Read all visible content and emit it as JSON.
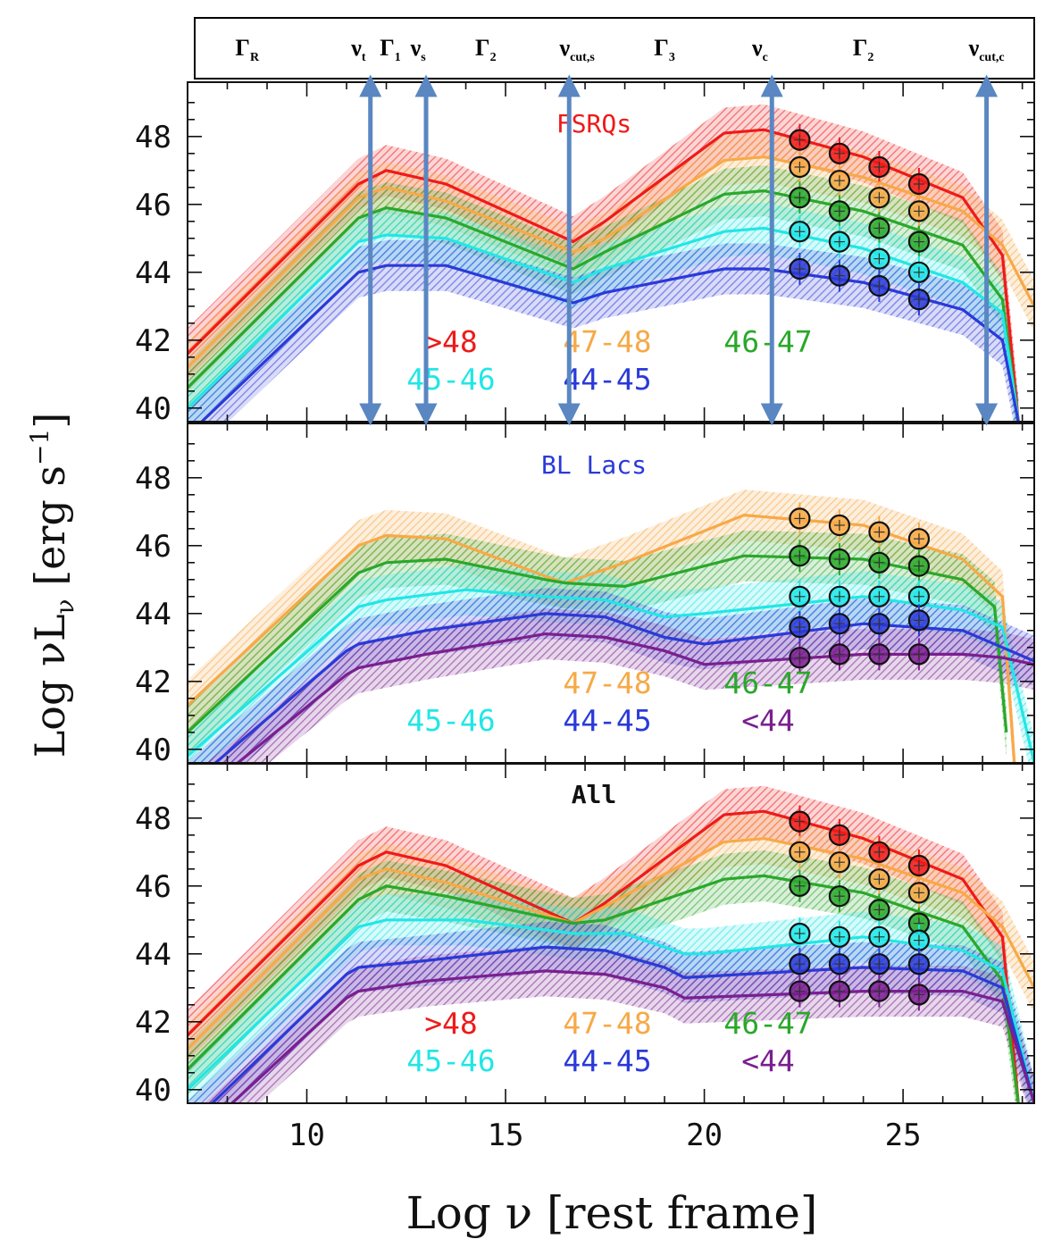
{
  "header": {
    "params": [
      {
        "sym": "Γ",
        "sub": "R",
        "x": 8.5
      },
      {
        "sym": "ν",
        "sub": "t",
        "x": 11.3
      },
      {
        "sym": "Γ",
        "sub": "1",
        "x": 12.1
      },
      {
        "sym": "ν",
        "sub": "s",
        "x": 12.8
      },
      {
        "sym": "Γ",
        "sub": "2",
        "x": 14.5
      },
      {
        "sym": "ν",
        "sub": "cut,s",
        "x": 16.8
      },
      {
        "sym": "Γ",
        "sub": "3",
        "x": 19.0
      },
      {
        "sym": "ν",
        "sub": "c",
        "x": 21.4
      },
      {
        "sym": "Γ",
        "sub": "2",
        "x": 24.0
      },
      {
        "sym": "ν",
        "sub": "cut,c",
        "x": 27.1
      }
    ],
    "arrows_x": [
      11.6,
      13.0,
      16.6,
      21.7,
      27.1
    ]
  },
  "axes": {
    "xlabel": "Log ν [rest frame]",
    "ylabel": "Log νL",
    "ylabel_sub": "ν",
    "ylabel_units": "[erg s",
    "ylabel_exp": "−1",
    "ylabel_close": "]",
    "xlim": [
      7,
      28.3
    ],
    "ylim": [
      39.6,
      49.6
    ],
    "xticks": [
      10,
      15,
      20,
      25
    ],
    "yticks": [
      40,
      42,
      44,
      46,
      48
    ]
  },
  "colors": {
    ">48": "#ee1a1a",
    "47-48": "#f7a947",
    "46-47": "#2aa82a",
    "45-46": "#22e6e6",
    "44-45": "#2a3ad8",
    "<44": "#7a1f8f"
  },
  "chart_data": [
    {
      "type": "line",
      "title": "FSRQs",
      "title_color": "#ee1a1a",
      "legend": [
        {
          "label": ">48",
          "key": ">48"
        },
        {
          "label": "47-48",
          "key": "47-48"
        },
        {
          "label": "46-47",
          "key": "46-47"
        },
        {
          "label": "45-46",
          "key": "45-46"
        },
        {
          "label": "44-45",
          "key": "44-45"
        }
      ],
      "series": [
        {
          "key": ">48",
          "x": [
            7,
            11.3,
            12.0,
            13.5,
            16.7,
            17.5,
            20.5,
            21.5,
            24.0,
            26.5,
            27.5,
            27.9
          ],
          "y": [
            41.6,
            46.6,
            47.0,
            46.6,
            44.9,
            45.5,
            48.1,
            48.2,
            47.4,
            46.2,
            44.5,
            39.6
          ],
          "points": [
            [
              22.4,
              47.9
            ],
            [
              23.4,
              47.5
            ],
            [
              24.4,
              47.1
            ],
            [
              25.4,
              46.6
            ]
          ]
        },
        {
          "key": "47-48",
          "x": [
            7,
            11.3,
            12.0,
            13.5,
            16.7,
            17.5,
            20.5,
            21.5,
            24.0,
            26.5,
            27.5,
            28.3
          ],
          "y": [
            41.2,
            46.2,
            46.5,
            46.1,
            44.6,
            45.0,
            47.3,
            47.4,
            46.8,
            45.8,
            44.8,
            43.0
          ],
          "points": [
            [
              22.4,
              47.1
            ],
            [
              23.4,
              46.7
            ],
            [
              24.4,
              46.2
            ],
            [
              25.4,
              45.8
            ]
          ]
        },
        {
          "key": "46-47",
          "x": [
            7,
            11.3,
            12.0,
            13.5,
            16.7,
            17.5,
            20.5,
            21.5,
            24.0,
            26.5,
            27.5,
            27.9
          ],
          "y": [
            40.6,
            45.6,
            45.9,
            45.6,
            44.1,
            44.6,
            46.3,
            46.4,
            45.8,
            44.8,
            43.2,
            39.6
          ],
          "points": [
            [
              22.4,
              46.2
            ],
            [
              23.4,
              45.8
            ],
            [
              24.4,
              45.3
            ],
            [
              25.4,
              44.9
            ]
          ]
        },
        {
          "key": "45-46",
          "x": [
            7,
            11.3,
            12.0,
            13.5,
            16.7,
            17.5,
            20.5,
            21.5,
            24.0,
            26.5,
            27.5,
            27.9
          ],
          "y": [
            40.0,
            44.9,
            45.1,
            45.0,
            43.7,
            44.1,
            45.2,
            45.3,
            44.7,
            43.7,
            42.8,
            39.6
          ],
          "points": [
            [
              22.4,
              45.2
            ],
            [
              23.4,
              44.9
            ],
            [
              24.4,
              44.4
            ],
            [
              25.4,
              44.0
            ]
          ]
        },
        {
          "key": "44-45",
          "x": [
            7,
            11.3,
            12.0,
            13.5,
            16.7,
            17.5,
            20.5,
            21.5,
            24.0,
            26.5,
            27.5,
            27.9
          ],
          "y": [
            39.2,
            44.0,
            44.2,
            44.2,
            43.1,
            43.4,
            44.1,
            44.1,
            43.7,
            42.9,
            42.0,
            39.6
          ],
          "points": [
            [
              22.4,
              44.1
            ],
            [
              23.4,
              43.9
            ],
            [
              24.4,
              43.6
            ],
            [
              25.4,
              43.2
            ]
          ]
        }
      ]
    },
    {
      "type": "line",
      "title": "BL Lacs",
      "title_color": "#2a3ad8",
      "legend": [
        {
          "label": "47-48",
          "key": "47-48"
        },
        {
          "label": "46-47",
          "key": "46-47"
        },
        {
          "label": "45-46",
          "key": "45-46"
        },
        {
          "label": "44-45",
          "key": "44-45"
        },
        {
          "label": "<44",
          "key": "<44"
        }
      ],
      "series": [
        {
          "key": "47-48",
          "x": [
            7,
            11.3,
            12.0,
            13.5,
            16.0,
            16.5,
            18.0,
            21.0,
            24.0,
            26.5,
            27.5,
            27.8
          ],
          "y": [
            41.3,
            46.0,
            46.3,
            46.2,
            45.1,
            44.9,
            45.5,
            46.9,
            46.6,
            45.6,
            44.5,
            39.6
          ],
          "points": [
            [
              22.4,
              46.8
            ],
            [
              23.4,
              46.6
            ],
            [
              24.4,
              46.4
            ],
            [
              25.4,
              46.2
            ]
          ]
        },
        {
          "key": "46-47",
          "x": [
            7,
            11.3,
            12.0,
            13.5,
            16.0,
            16.5,
            18.0,
            21.0,
            24.0,
            26.5,
            27.3,
            27.6
          ],
          "y": [
            40.5,
            45.2,
            45.5,
            45.6,
            45.0,
            44.9,
            44.8,
            45.7,
            45.6,
            45.0,
            44.2,
            40.5
          ],
          "points": [
            [
              22.4,
              45.7
            ],
            [
              23.4,
              45.6
            ],
            [
              24.4,
              45.5
            ],
            [
              25.4,
              45.4
            ]
          ]
        },
        {
          "key": "45-46",
          "x": [
            7,
            11.3,
            12.0,
            14.0,
            16.0,
            17.5,
            19.0,
            20.0,
            24.0,
            26.5,
            27.5,
            28.3
          ],
          "y": [
            39.8,
            44.2,
            44.4,
            44.7,
            44.5,
            44.4,
            43.9,
            44.0,
            44.5,
            44.1,
            43.6,
            39.6
          ],
          "points": [
            [
              22.4,
              44.5
            ],
            [
              23.4,
              44.5
            ],
            [
              24.4,
              44.5
            ],
            [
              25.4,
              44.5
            ]
          ]
        },
        {
          "key": "44-45",
          "x": [
            7,
            11.0,
            11.3,
            13.0,
            16.0,
            17.5,
            19.0,
            20.0,
            24.0,
            26.5,
            27.5,
            28.3
          ],
          "y": [
            38.9,
            42.9,
            43.1,
            43.5,
            44.0,
            43.9,
            43.3,
            43.1,
            43.7,
            43.5,
            43.0,
            42.6
          ],
          "points": [
            [
              22.4,
              43.6
            ],
            [
              23.4,
              43.7
            ],
            [
              24.4,
              43.7
            ],
            [
              25.4,
              43.8
            ]
          ]
        },
        {
          "key": "<44",
          "x": [
            7,
            11.0,
            11.3,
            13.0,
            16.0,
            17.5,
            19.0,
            20.0,
            24.0,
            26.5,
            27.5,
            28.3
          ],
          "y": [
            38.4,
            42.2,
            42.4,
            42.8,
            43.4,
            43.3,
            42.9,
            42.5,
            42.8,
            42.8,
            42.7,
            42.5
          ],
          "points": [
            [
              22.4,
              42.7
            ],
            [
              23.4,
              42.8
            ],
            [
              24.4,
              42.8
            ],
            [
              25.4,
              42.8
            ]
          ]
        }
      ]
    },
    {
      "type": "line",
      "title": "All",
      "title_color": "#111111",
      "legend": [
        {
          "label": ">48",
          "key": ">48"
        },
        {
          "label": "47-48",
          "key": "47-48"
        },
        {
          "label": "46-47",
          "key": "46-47"
        },
        {
          "label": "45-46",
          "key": "45-46"
        },
        {
          "label": "44-45",
          "key": "44-45"
        },
        {
          "label": "<44",
          "key": "<44"
        }
      ],
      "series": [
        {
          "key": ">48",
          "x": [
            7,
            11.3,
            12.0,
            13.5,
            16.7,
            17.5,
            20.5,
            21.5,
            24.0,
            26.5,
            27.5,
            27.9
          ],
          "y": [
            41.6,
            46.6,
            47.0,
            46.6,
            44.9,
            45.5,
            48.1,
            48.2,
            47.4,
            46.2,
            44.5,
            39.6
          ],
          "points": [
            [
              22.4,
              47.9
            ],
            [
              23.4,
              47.5
            ],
            [
              24.4,
              47.0
            ],
            [
              25.4,
              46.6
            ]
          ]
        },
        {
          "key": "47-48",
          "x": [
            7,
            11.3,
            12.0,
            13.5,
            16.7,
            17.5,
            20.5,
            21.5,
            24.0,
            26.5,
            27.5,
            28.3
          ],
          "y": [
            41.2,
            46.2,
            46.5,
            46.1,
            44.9,
            45.4,
            47.3,
            47.4,
            46.8,
            45.8,
            44.8,
            43.0
          ],
          "points": [
            [
              22.4,
              47.0
            ],
            [
              23.4,
              46.7
            ],
            [
              24.4,
              46.2
            ],
            [
              25.4,
              45.8
            ]
          ]
        },
        {
          "key": "46-47",
          "x": [
            7,
            11.3,
            12.0,
            13.5,
            16.7,
            17.5,
            20.5,
            21.5,
            24.0,
            26.5,
            27.5,
            27.9
          ],
          "y": [
            40.6,
            45.6,
            46.0,
            45.7,
            44.9,
            45.0,
            46.2,
            46.3,
            45.8,
            44.8,
            43.2,
            39.6
          ],
          "points": [
            [
              22.4,
              46.0
            ],
            [
              23.4,
              45.7
            ],
            [
              24.4,
              45.3
            ],
            [
              25.4,
              44.9
            ]
          ]
        },
        {
          "key": "45-46",
          "x": [
            7,
            11.3,
            12.0,
            14.0,
            16.7,
            18.0,
            19.5,
            20.0,
            24.0,
            26.5,
            27.5,
            28.3
          ],
          "y": [
            40.0,
            44.8,
            45.0,
            45.0,
            44.6,
            44.6,
            44.0,
            44.0,
            44.5,
            44.1,
            43.5,
            39.6
          ],
          "points": [
            [
              22.4,
              44.6
            ],
            [
              23.4,
              44.5
            ],
            [
              24.4,
              44.5
            ],
            [
              25.4,
              44.4
            ]
          ]
        },
        {
          "key": "44-45",
          "x": [
            7,
            11.0,
            11.3,
            13.0,
            16.0,
            17.5,
            19.0,
            19.5,
            24.0,
            26.5,
            27.5,
            28.3
          ],
          "y": [
            38.9,
            43.4,
            43.6,
            43.8,
            44.2,
            44.1,
            43.6,
            43.3,
            43.6,
            43.5,
            43.0,
            39.6
          ],
          "points": [
            [
              22.4,
              43.7
            ],
            [
              23.4,
              43.7
            ],
            [
              24.4,
              43.7
            ],
            [
              25.4,
              43.7
            ]
          ]
        },
        {
          "key": "<44",
          "x": [
            7,
            11.0,
            11.3,
            13.0,
            16.0,
            17.5,
            19.0,
            19.5,
            24.0,
            26.5,
            27.5,
            28.3
          ],
          "y": [
            38.4,
            42.7,
            42.9,
            43.2,
            43.5,
            43.4,
            43.0,
            42.7,
            42.9,
            42.9,
            42.6,
            39.6
          ],
          "points": [
            [
              22.4,
              42.9
            ],
            [
              23.4,
              42.9
            ],
            [
              24.4,
              42.9
            ],
            [
              25.4,
              42.8
            ]
          ]
        }
      ]
    }
  ]
}
